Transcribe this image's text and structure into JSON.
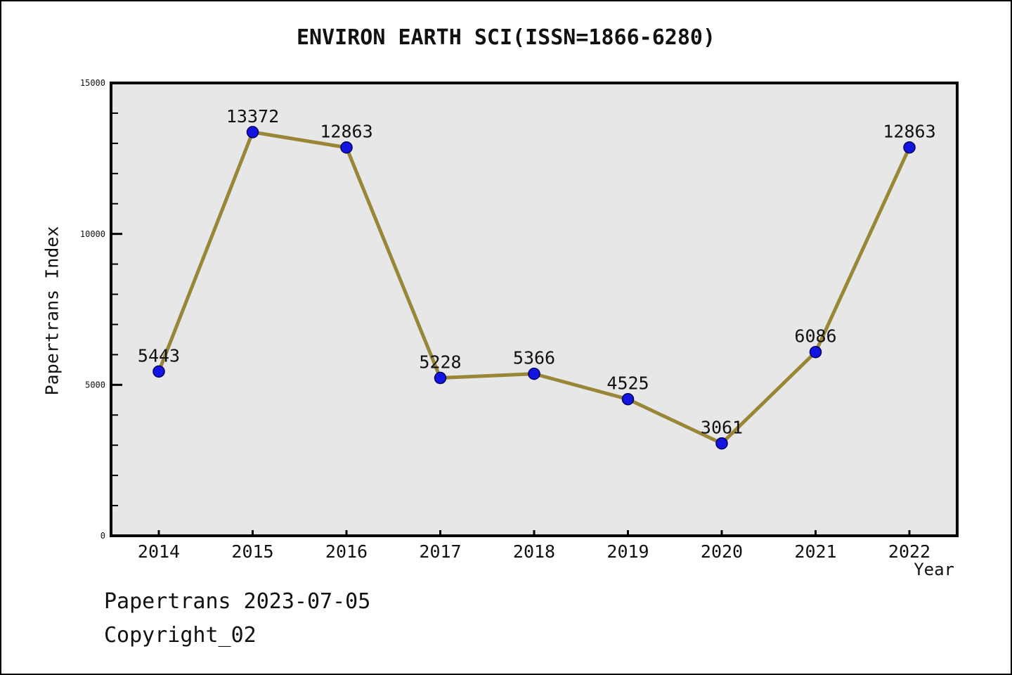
{
  "chart_data": {
    "type": "line",
    "title": "ENVIRON EARTH SCI(ISSN=1866-6280)",
    "x": [
      2014,
      2015,
      2016,
      2017,
      2018,
      2019,
      2020,
      2021,
      2022
    ],
    "series": [
      {
        "name": "Papertrans Index",
        "values": [
          5443,
          13372,
          12863,
          5228,
          5366,
          4525,
          3061,
          6086,
          12863
        ]
      }
    ],
    "xlabel": "Year",
    "ylabel": "Papertrans Index",
    "ylim": [
      0,
      15000
    ],
    "yticks_major": [
      0,
      5000,
      10000,
      15000
    ],
    "ytick_minor_step": 1000,
    "grid": false,
    "legend": "none",
    "data_labels_shown": true,
    "colors": {
      "line": "#998637",
      "marker": "#1414e0",
      "marker_edge": "#000060",
      "plot_bg": "#e7e7e7",
      "axis": "#000000",
      "text": "#111111"
    }
  },
  "footer": {
    "line1": "Papertrans 2023-07-05",
    "line2": "Copyright_02"
  }
}
